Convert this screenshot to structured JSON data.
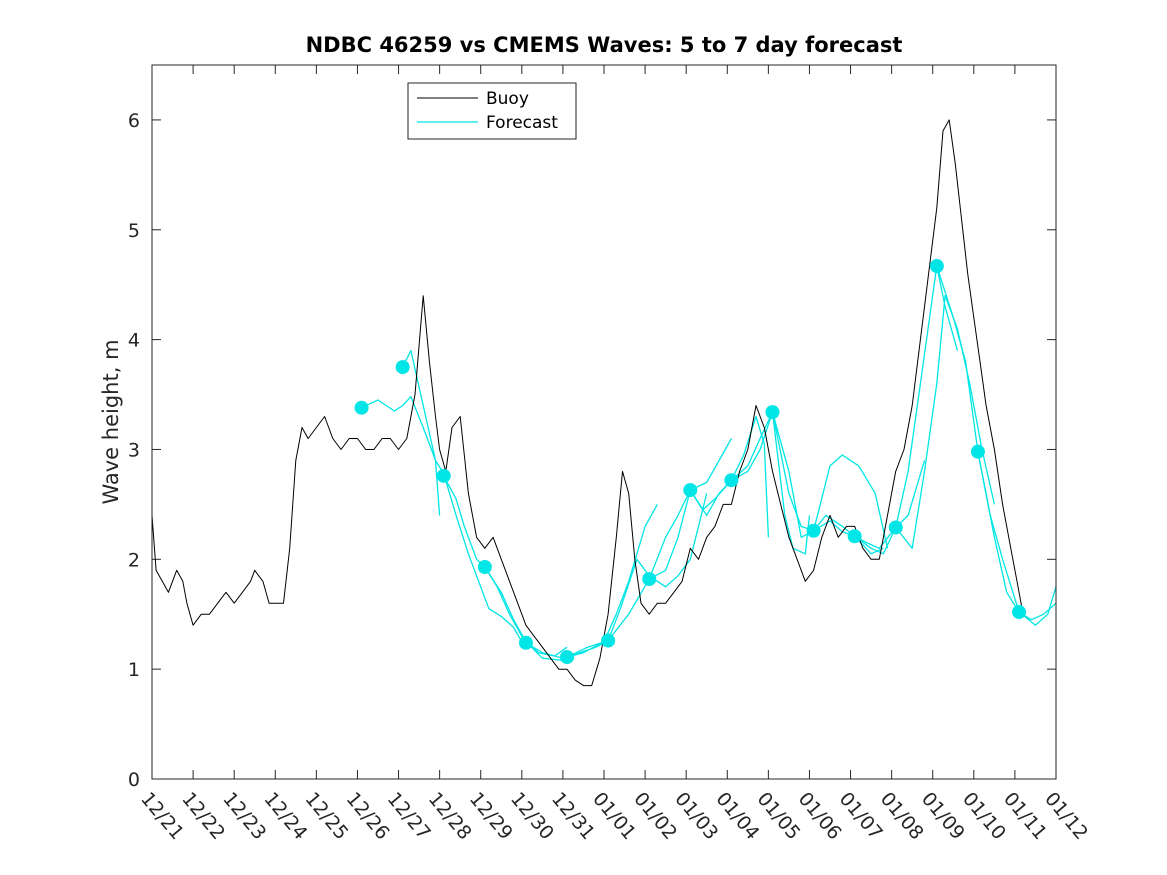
{
  "chart_data": {
    "type": "line",
    "title": "NDBC 46259 vs CMEMS Waves: 5 to 7 day forecast",
    "xlabel": "",
    "ylabel": "Wave height, m",
    "ylim": [
      0,
      6.5
    ],
    "yticks": [
      0,
      1,
      2,
      3,
      4,
      5,
      6
    ],
    "xlim": [
      0,
      22
    ],
    "xtick_labels": [
      "12/21",
      "12/22",
      "12/23",
      "12/24",
      "12/25",
      "12/26",
      "12/27",
      "12/28",
      "12/29",
      "12/30",
      "12/31",
      "01/01",
      "01/02",
      "01/03",
      "01/04",
      "01/05",
      "01/06",
      "01/07",
      "01/08",
      "01/09",
      "01/10",
      "01/11",
      "01/12"
    ],
    "legend": {
      "position": "top-center",
      "entries": [
        "Buoy",
        "Forecast"
      ]
    },
    "colors": {
      "buoy": "#000000",
      "forecast": "#00e5e5",
      "axes": "#262626"
    },
    "buoy": {
      "name": "Buoy",
      "points": [
        [
          0,
          2.4
        ],
        [
          0.1,
          1.9
        ],
        [
          0.25,
          1.8
        ],
        [
          0.4,
          1.7
        ],
        [
          0.6,
          1.9
        ],
        [
          0.75,
          1.8
        ],
        [
          0.85,
          1.6
        ],
        [
          1.0,
          1.4
        ],
        [
          1.2,
          1.5
        ],
        [
          1.4,
          1.5
        ],
        [
          1.6,
          1.6
        ],
        [
          1.8,
          1.7
        ],
        [
          2.0,
          1.6
        ],
        [
          2.2,
          1.7
        ],
        [
          2.4,
          1.8
        ],
        [
          2.5,
          1.9
        ],
        [
          2.7,
          1.8
        ],
        [
          2.85,
          1.6
        ],
        [
          3.0,
          1.6
        ],
        [
          3.2,
          1.6
        ],
        [
          3.35,
          2.1
        ],
        [
          3.5,
          2.9
        ],
        [
          3.65,
          3.2
        ],
        [
          3.8,
          3.1
        ],
        [
          4.0,
          3.2
        ],
        [
          4.2,
          3.3
        ],
        [
          4.4,
          3.1
        ],
        [
          4.6,
          3.0
        ],
        [
          4.8,
          3.1
        ],
        [
          5.0,
          3.1
        ],
        [
          5.2,
          3.0
        ],
        [
          5.4,
          3.0
        ],
        [
          5.6,
          3.1
        ],
        [
          5.8,
          3.1
        ],
        [
          6.0,
          3.0
        ],
        [
          6.2,
          3.1
        ],
        [
          6.4,
          3.5
        ],
        [
          6.6,
          4.4
        ],
        [
          6.75,
          3.8
        ],
        [
          6.9,
          3.3
        ],
        [
          7.0,
          3.0
        ],
        [
          7.15,
          2.8
        ],
        [
          7.3,
          3.2
        ],
        [
          7.5,
          3.3
        ],
        [
          7.7,
          2.6
        ],
        [
          7.9,
          2.2
        ],
        [
          8.1,
          2.1
        ],
        [
          8.3,
          2.2
        ],
        [
          8.5,
          2.0
        ],
        [
          8.7,
          1.8
        ],
        [
          8.9,
          1.6
        ],
        [
          9.1,
          1.4
        ],
        [
          9.3,
          1.3
        ],
        [
          9.5,
          1.2
        ],
        [
          9.7,
          1.1
        ],
        [
          9.9,
          1.0
        ],
        [
          10.1,
          1.0
        ],
        [
          10.3,
          0.9
        ],
        [
          10.5,
          0.85
        ],
        [
          10.7,
          0.85
        ],
        [
          10.9,
          1.1
        ],
        [
          11.1,
          1.5
        ],
        [
          11.3,
          2.2
        ],
        [
          11.45,
          2.8
        ],
        [
          11.6,
          2.6
        ],
        [
          11.75,
          2.0
        ],
        [
          11.9,
          1.6
        ],
        [
          12.1,
          1.5
        ],
        [
          12.3,
          1.6
        ],
        [
          12.5,
          1.6
        ],
        [
          12.7,
          1.7
        ],
        [
          12.9,
          1.8
        ],
        [
          13.1,
          2.1
        ],
        [
          13.3,
          2.0
        ],
        [
          13.5,
          2.2
        ],
        [
          13.7,
          2.3
        ],
        [
          13.9,
          2.5
        ],
        [
          14.1,
          2.5
        ],
        [
          14.3,
          2.8
        ],
        [
          14.5,
          3.0
        ],
        [
          14.7,
          3.4
        ],
        [
          14.9,
          3.2
        ],
        [
          15.1,
          2.8
        ],
        [
          15.3,
          2.5
        ],
        [
          15.5,
          2.2
        ],
        [
          15.7,
          2.0
        ],
        [
          15.9,
          1.8
        ],
        [
          16.1,
          1.9
        ],
        [
          16.3,
          2.2
        ],
        [
          16.5,
          2.4
        ],
        [
          16.7,
          2.2
        ],
        [
          16.9,
          2.3
        ],
        [
          17.1,
          2.3
        ],
        [
          17.3,
          2.1
        ],
        [
          17.5,
          2.0
        ],
        [
          17.7,
          2.0
        ],
        [
          17.9,
          2.4
        ],
        [
          18.1,
          2.8
        ],
        [
          18.3,
          3.0
        ],
        [
          18.5,
          3.4
        ],
        [
          18.7,
          4.0
        ],
        [
          18.9,
          4.6
        ],
        [
          19.1,
          5.2
        ],
        [
          19.25,
          5.9
        ],
        [
          19.4,
          6.0
        ],
        [
          19.55,
          5.6
        ],
        [
          19.7,
          5.1
        ],
        [
          19.85,
          4.6
        ],
        [
          20.0,
          4.2
        ],
        [
          20.15,
          3.8
        ],
        [
          20.3,
          3.4
        ],
        [
          20.5,
          3.0
        ],
        [
          20.7,
          2.5
        ],
        [
          20.9,
          2.1
        ],
        [
          21.05,
          1.8
        ],
        [
          21.2,
          1.5
        ]
      ]
    },
    "forecast": {
      "name": "Forecast",
      "segments": [
        [
          [
            5.1,
            3.38
          ],
          [
            5.5,
            3.45
          ],
          [
            5.9,
            3.35
          ],
          [
            6.1,
            3.4
          ],
          [
            6.3,
            3.48
          ],
          [
            6.6,
            3.2
          ],
          [
            6.9,
            2.9
          ],
          [
            7.0,
            2.4
          ]
        ],
        [
          [
            6.1,
            3.75
          ],
          [
            6.3,
            3.9
          ],
          [
            6.6,
            3.4
          ],
          [
            6.9,
            2.9
          ],
          [
            7.1,
            2.78
          ],
          [
            7.4,
            2.4
          ],
          [
            7.7,
            2.05
          ],
          [
            8.0,
            1.75
          ],
          [
            8.2,
            1.55
          ],
          [
            8.5,
            1.48
          ],
          [
            8.8,
            1.38
          ],
          [
            9.0,
            1.25
          ]
        ],
        [
          [
            7.1,
            2.76
          ],
          [
            7.4,
            2.55
          ],
          [
            7.6,
            2.3
          ],
          [
            7.9,
            2.0
          ],
          [
            8.1,
            1.93
          ],
          [
            8.4,
            1.75
          ],
          [
            8.7,
            1.5
          ],
          [
            9.0,
            1.3
          ],
          [
            9.4,
            1.15
          ],
          [
            9.8,
            1.12
          ],
          [
            10.1,
            1.2
          ]
        ],
        [
          [
            8.1,
            1.93
          ],
          [
            8.5,
            1.7
          ],
          [
            8.8,
            1.45
          ],
          [
            9.1,
            1.25
          ],
          [
            9.5,
            1.1
          ],
          [
            10.0,
            1.08
          ],
          [
            10.4,
            1.15
          ],
          [
            10.8,
            1.2
          ],
          [
            11.1,
            1.26
          ]
        ],
        [
          [
            9.1,
            1.24
          ],
          [
            9.5,
            1.15
          ],
          [
            10.0,
            1.1
          ],
          [
            10.5,
            1.15
          ],
          [
            11.0,
            1.25
          ],
          [
            11.3,
            1.5
          ],
          [
            11.6,
            1.8
          ],
          [
            12.0,
            2.3
          ],
          [
            12.3,
            2.5
          ]
        ],
        [
          [
            10.1,
            1.11
          ],
          [
            10.6,
            1.2
          ],
          [
            11.1,
            1.26
          ],
          [
            11.4,
            1.55
          ],
          [
            11.8,
            2.0
          ],
          [
            12.1,
            1.85
          ],
          [
            12.5,
            1.75
          ],
          [
            12.8,
            1.85
          ],
          [
            13.1,
            2.0
          ],
          [
            13.5,
            2.6
          ]
        ],
        [
          [
            11.1,
            1.26
          ],
          [
            11.6,
            1.5
          ],
          [
            12.1,
            1.82
          ],
          [
            12.5,
            2.2
          ],
          [
            12.8,
            2.4
          ],
          [
            13.1,
            2.63
          ],
          [
            13.5,
            2.7
          ],
          [
            13.8,
            2.9
          ],
          [
            14.1,
            3.1
          ]
        ],
        [
          [
            12.1,
            1.82
          ],
          [
            12.5,
            1.9
          ],
          [
            12.8,
            2.2
          ],
          [
            13.1,
            2.63
          ],
          [
            13.4,
            2.45
          ],
          [
            13.7,
            2.55
          ],
          [
            14.1,
            2.72
          ],
          [
            14.4,
            2.95
          ],
          [
            14.7,
            3.3
          ],
          [
            14.9,
            3.05
          ],
          [
            15.0,
            2.2
          ]
        ],
        [
          [
            13.1,
            2.63
          ],
          [
            13.5,
            2.4
          ],
          [
            13.8,
            2.6
          ],
          [
            14.1,
            2.72
          ],
          [
            14.5,
            2.8
          ],
          [
            14.8,
            3.0
          ],
          [
            15.1,
            3.34
          ],
          [
            15.4,
            2.4
          ],
          [
            15.6,
            2.1
          ],
          [
            15.9,
            2.05
          ],
          [
            16.0,
            2.4
          ]
        ],
        [
          [
            14.1,
            2.72
          ],
          [
            14.5,
            2.85
          ],
          [
            14.8,
            3.1
          ],
          [
            15.1,
            3.34
          ],
          [
            15.5,
            2.8
          ],
          [
            15.8,
            2.2
          ],
          [
            16.1,
            2.26
          ],
          [
            16.5,
            2.85
          ],
          [
            16.8,
            2.95
          ],
          [
            17.2,
            2.85
          ],
          [
            17.6,
            2.6
          ],
          [
            17.9,
            2.1
          ]
        ],
        [
          [
            15.1,
            3.34
          ],
          [
            15.5,
            2.6
          ],
          [
            15.8,
            2.3
          ],
          [
            16.1,
            2.26
          ],
          [
            16.5,
            2.35
          ],
          [
            16.8,
            2.25
          ],
          [
            17.1,
            2.21
          ],
          [
            17.5,
            2.05
          ],
          [
            17.8,
            2.1
          ]
        ],
        [
          [
            16.1,
            2.26
          ],
          [
            16.4,
            2.4
          ],
          [
            16.8,
            2.3
          ],
          [
            17.1,
            2.21
          ],
          [
            17.4,
            2.15
          ],
          [
            17.7,
            2.1
          ],
          [
            18.1,
            2.29
          ],
          [
            18.4,
            2.4
          ],
          [
            18.8,
            2.9
          ]
        ],
        [
          [
            17.1,
            2.21
          ],
          [
            17.5,
            2.1
          ],
          [
            17.8,
            2.05
          ],
          [
            18.1,
            2.29
          ],
          [
            18.4,
            2.8
          ],
          [
            18.7,
            3.6
          ],
          [
            19.1,
            4.67
          ],
          [
            19.3,
            4.3
          ],
          [
            19.6,
            3.9
          ]
        ],
        [
          [
            18.1,
            2.29
          ],
          [
            18.5,
            2.1
          ],
          [
            18.8,
            2.8
          ],
          [
            19.1,
            3.6
          ],
          [
            19.3,
            4.4
          ],
          [
            19.6,
            4.1
          ],
          [
            19.9,
            3.6
          ],
          [
            20.2,
            3.0
          ],
          [
            20.5,
            2.5
          ]
        ],
        [
          [
            19.1,
            4.67
          ],
          [
            19.5,
            4.2
          ],
          [
            19.8,
            3.8
          ],
          [
            20.1,
            2.98
          ],
          [
            20.4,
            2.4
          ],
          [
            20.7,
            2.0
          ],
          [
            21.1,
            1.52
          ],
          [
            21.5,
            1.4
          ],
          [
            21.8,
            1.5
          ],
          [
            22.0,
            1.75
          ]
        ],
        [
          [
            20.1,
            2.98
          ],
          [
            20.5,
            2.2
          ],
          [
            20.8,
            1.7
          ],
          [
            21.1,
            1.52
          ],
          [
            21.4,
            1.45
          ],
          [
            21.7,
            1.5
          ],
          [
            22.0,
            1.6
          ]
        ]
      ],
      "markers": [
        [
          5.1,
          3.38
        ],
        [
          6.1,
          3.75
        ],
        [
          7.1,
          2.76
        ],
        [
          8.1,
          1.93
        ],
        [
          9.1,
          1.24
        ],
        [
          10.1,
          1.11
        ],
        [
          11.1,
          1.26
        ],
        [
          12.1,
          1.82
        ],
        [
          13.1,
          2.63
        ],
        [
          14.1,
          2.72
        ],
        [
          15.1,
          3.34
        ],
        [
          16.1,
          2.26
        ],
        [
          17.1,
          2.21
        ],
        [
          18.1,
          2.29
        ],
        [
          19.1,
          4.67
        ],
        [
          20.1,
          2.98
        ],
        [
          21.1,
          1.52
        ]
      ]
    }
  }
}
